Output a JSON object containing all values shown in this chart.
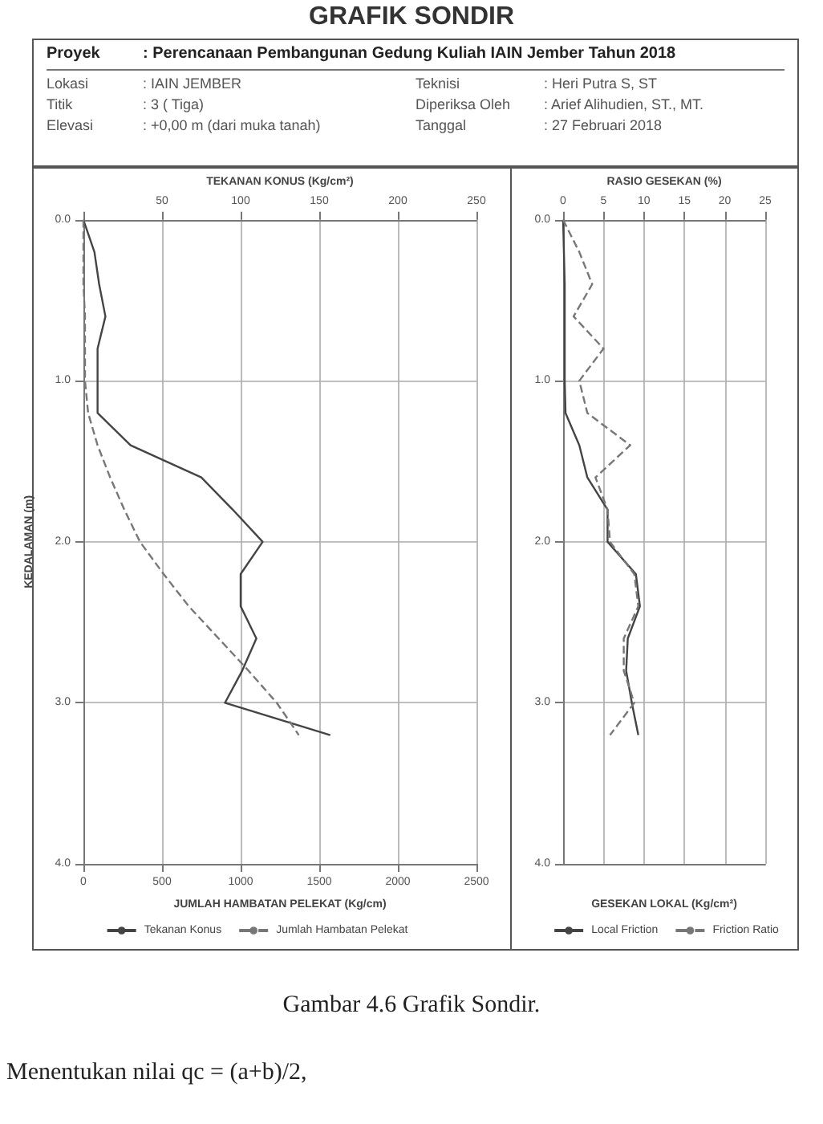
{
  "chart_data": [
    {
      "type": "line",
      "title": "GRAFIK SONDIR",
      "annotations": [
        "Proyek : Perencanaan Pembangunan Gedung Kuliah IAIN Jember Tahun 2018",
        "Lokasi : IAIN JEMBER",
        "Teknisi : Heri Putra S, ST",
        "Titik : 3 ( Tiga)",
        "Diperiksa Oleh : Arief Alihudien, ST., MT.",
        "Elevasi : +0,00 m (dari muka tanah)",
        "Tanggal : 27 Februari 2018",
        "Gambar 4.6 Grafik Sondir.",
        "Menentukan nilai qc = (a+b)/2,"
      ],
      "xlabel": "JUMLAH HAMBATAN PELEKAT (Kg/cm)",
      "x2label": "TEKANAN KONUS (Kg/cm²)",
      "ylabel": "KEDALAMAN (m)",
      "orientation": "horizontal",
      "x": [
        0,
        0.2,
        0.4,
        0.6,
        0.8,
        1.0,
        1.2,
        1.4,
        1.6,
        1.8,
        2.0,
        2.2,
        2.4,
        2.6,
        2.8,
        3.0,
        3.2
      ],
      "xlim": [
        0,
        2500
      ],
      "xticks": [
        0,
        500,
        1000,
        1500,
        2000,
        2500
      ],
      "x2lim": [
        0,
        250
      ],
      "x2ticks": [
        {
          "value": 0,
          "label": null
        },
        50,
        100,
        150,
        200,
        250
      ],
      "ylim": [
        4,
        0
      ],
      "yticks": [
        {
          "value": 0,
          "label": "0.0"
        },
        {
          "value": 1,
          "label": "1.0"
        },
        {
          "value": 2,
          "label": "2.0"
        },
        {
          "value": 3,
          "label": "3.0"
        },
        {
          "value": 4,
          "label": "4.0"
        }
      ],
      "grid": true,
      "legend": "bottom",
      "marker": "none",
      "series": [
        {
          "name": "Tekanan Konus",
          "color": "#444444",
          "axis": "x2",
          "line_style": "solid",
          "values": [
            0,
            7,
            10,
            14,
            9,
            9,
            9,
            30,
            75,
            95,
            114,
            100,
            100,
            110,
            101,
            90,
            157
          ]
        },
        {
          "name": "Jumlah Hambatan Pelekat",
          "color": "#777777",
          "line_style": "dashed",
          "values": [
            0,
            0,
            0,
            10,
            10,
            10,
            30,
            90,
            170,
            260,
            360,
            510,
            670,
            860,
            1050,
            1230,
            1370
          ]
        }
      ]
    },
    {
      "type": "line",
      "x2label": "RASIO GESEKAN (%)",
      "xlabel": "GESEKAN LOKAL (Kg/cm²)",
      "orientation": "horizontal",
      "x": [
        0,
        0.2,
        0.4,
        0.6,
        0.8,
        1.0,
        1.2,
        1.4,
        1.6,
        1.8,
        2.0,
        2.2,
        2.4,
        2.6,
        2.8,
        3.0,
        3.2
      ],
      "x2lim": [
        0,
        25
      ],
      "x2ticks": [
        0,
        5,
        10,
        15,
        20,
        25
      ],
      "ylim": [
        4,
        0
      ],
      "yticks": [
        {
          "value": 0,
          "label": "0.0"
        },
        {
          "value": 1,
          "label": "1.0"
        },
        {
          "value": 2,
          "label": "2.0"
        },
        {
          "value": 3,
          "label": "3.0"
        },
        {
          "value": 4,
          "label": "4.0"
        }
      ],
      "grid": true,
      "legend": "bottom",
      "marker": "none",
      "series": [
        {
          "name": "Local Friction",
          "color": "#444444",
          "axis": "x2",
          "line_style": "solid",
          "values": [
            0,
            0.1,
            0.2,
            0.2,
            0.2,
            0.2,
            0.3,
            2,
            3,
            5.5,
            5.5,
            9,
            9.5,
            8,
            7.8,
            8.5,
            9.3
          ]
        },
        {
          "name": "Friction Ratio",
          "color": "#777777",
          "axis": "x2",
          "line_style": "dashed",
          "values": [
            0,
            2,
            3.6,
            1.3,
            5,
            2,
            3,
            8.3,
            4,
            5.5,
            5.8,
            8.8,
            9.3,
            7.5,
            7.5,
            8.8,
            5.8
          ]
        }
      ]
    }
  ]
}
